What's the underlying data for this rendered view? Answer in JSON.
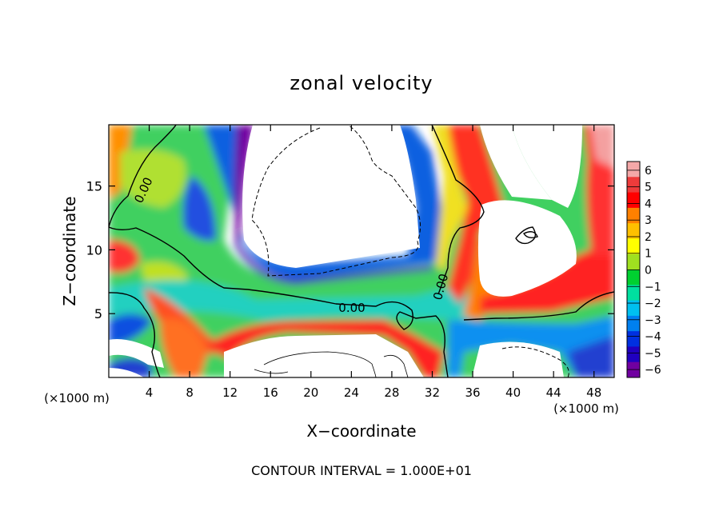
{
  "chart_data": {
    "type": "heatmap",
    "title": "zonal velocity",
    "xlabel": "X−coordinate",
    "ylabel": "Z−coordinate",
    "x_unit_left": "(×1000 m)",
    "x_unit_right": "(×1000 m)",
    "footer": "CONTOUR INTERVAL = 1.000E+01",
    "xlim": [
      0,
      50
    ],
    "ylim": [
      0,
      19.8
    ],
    "x_ticks": [
      4,
      8,
      12,
      16,
      20,
      24,
      28,
      32,
      36,
      40,
      44,
      48
    ],
    "y_ticks": [
      5,
      10,
      15
    ],
    "contour_labels": [
      {
        "text": "0.00",
        "x": 4,
        "y": 14.5
      },
      {
        "text": "0.00",
        "x": 24.5,
        "y": 5.4
      },
      {
        "text": "0.00",
        "x": 33,
        "y": 6.8
      }
    ],
    "colorbar": {
      "min": -6,
      "max": 6,
      "ticks": [
        "6",
        "5",
        "4",
        "3",
        "2",
        "1",
        "0",
        "−1",
        "−2",
        "−3",
        "−4",
        "−5",
        "−6"
      ],
      "colors": [
        "#f4a8a8",
        "#ee3b3b",
        "#ff0000",
        "#ff8000",
        "#ffc000",
        "#ffff00",
        "#a0e020",
        "#00d030",
        "#00e0a0",
        "#00c0f0",
        "#0080f0",
        "#0030e0",
        "#2000c0",
        "#7000a0"
      ]
    }
  }
}
